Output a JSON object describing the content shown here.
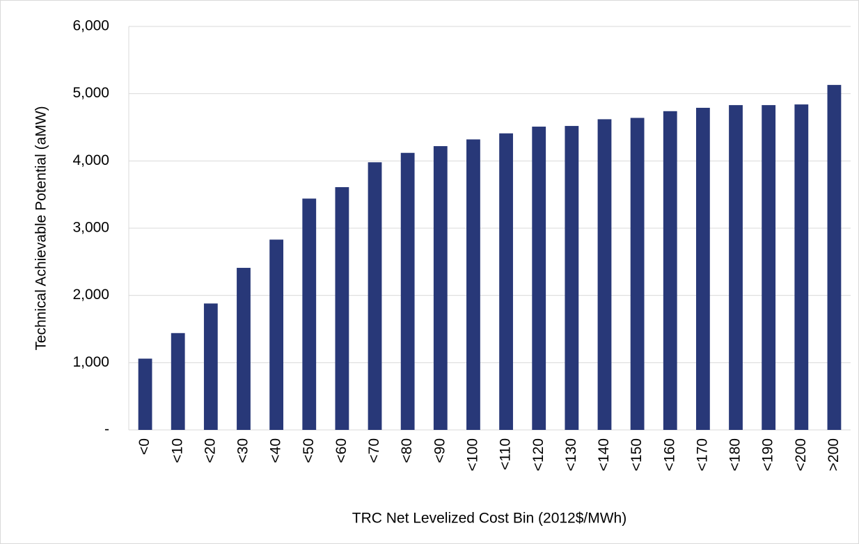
{
  "chart_data": {
    "type": "bar",
    "x_label": "TRC Net Levelized Cost Bin (2012$/MWh)",
    "y_label": "Technical Achievable Potential (aMW)",
    "categories": [
      "<0",
      "<10",
      "<20",
      "<30",
      "<40",
      "<50",
      "<60",
      "<70",
      "<80",
      "<90",
      "<100",
      "<110",
      "<120",
      "<130",
      "<140",
      "<150",
      "<160",
      "<170",
      "<180",
      "<190",
      "<200",
      ">200"
    ],
    "values": [
      1060,
      1440,
      1880,
      2410,
      2830,
      3440,
      3610,
      3980,
      4120,
      4220,
      4320,
      4410,
      4510,
      4520,
      4620,
      4640,
      4740,
      4790,
      4830,
      4830,
      4840,
      5130
    ],
    "color": "#283878",
    "ylim": [
      0,
      6000
    ],
    "yticks": [
      {
        "value": 0,
        "label": "-"
      },
      {
        "value": 1000,
        "label": "1,000"
      },
      {
        "value": 2000,
        "label": "2,000"
      },
      {
        "value": 3000,
        "label": "3,000"
      },
      {
        "value": 4000,
        "label": "4,000"
      },
      {
        "value": 5000,
        "label": "5,000"
      },
      {
        "value": 6000,
        "label": "6,000"
      }
    ],
    "grid": true
  }
}
